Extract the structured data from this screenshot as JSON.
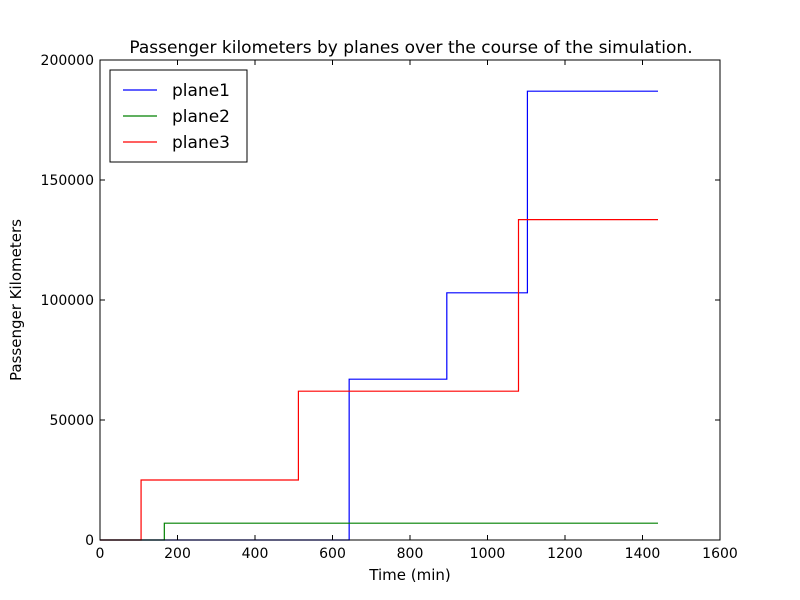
{
  "chart_data": {
    "type": "line",
    "step": true,
    "title": "Passenger kilometers by planes over the course of the simulation.",
    "xlabel": "Time (min)",
    "ylabel": "Passenger Kilometers",
    "xlim": [
      0,
      1600
    ],
    "ylim": [
      0,
      200000
    ],
    "xticks": [
      0,
      200,
      400,
      600,
      800,
      1000,
      1200,
      1400,
      1600
    ],
    "yticks": [
      0,
      50000,
      100000,
      150000,
      200000
    ],
    "grid": false,
    "legend_position": "top-left",
    "series": [
      {
        "name": "plane1",
        "color": "#0000ff",
        "x": [
          0,
          643,
          643,
          895,
          895,
          1103,
          1103,
          1440
        ],
        "y": [
          0,
          0,
          67000,
          67000,
          103000,
          103000,
          187000,
          187000
        ]
      },
      {
        "name": "plane2",
        "color": "#008000",
        "x": [
          0,
          166,
          166,
          1440
        ],
        "y": [
          0,
          0,
          7000,
          7000
        ]
      },
      {
        "name": "plane3",
        "color": "#ff0000",
        "x": [
          0,
          106,
          106,
          512,
          512,
          1080,
          1080,
          1440
        ],
        "y": [
          0,
          0,
          25000,
          25000,
          62000,
          62000,
          133500,
          133500
        ]
      }
    ]
  }
}
